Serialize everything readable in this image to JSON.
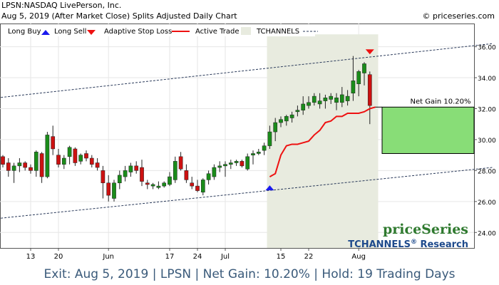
{
  "header": {
    "line1": "LPSN:NASDAQ LivePerson, Inc.",
    "line2": "Aug 5, 2019 (After Market Close)  Splits Adjusted Daily Chart",
    "copyright": "© priceseries.com"
  },
  "legend": {
    "long_buy": "Long Buy",
    "long_sell": "Long Sell",
    "adaptive_stop": "Adaptive Stop Loss",
    "active_trade": "Active Trade",
    "tchannels": "TCHANNELS"
  },
  "net_gain_label": "Net Gain 10.20%",
  "brand": {
    "name": "priceSeries",
    "sub": "TCHANNELS",
    "reg": "®",
    "research": " Research"
  },
  "footer": "Exit: Aug 5, 2019 | LPSN | Net Gain: 10.20% | Hold: 19 Trading Days",
  "colors": {
    "up": "#1a8c1a",
    "down": "#cc1111",
    "stop": "#ee1111",
    "active_trade_bg": "#e8ebdf",
    "gain_box": "#88dd77",
    "channel": "#2a3a5a",
    "footer_text": "#3a5a7a",
    "brand_green": "#2f7a2f",
    "brand_blue": "#1e4a8c"
  },
  "chart_data": {
    "type": "candlestick",
    "ylim": [
      23,
      37.5
    ],
    "y_ticks": [
      24,
      26,
      28,
      30,
      32,
      34,
      36
    ],
    "y_tick_labels": [
      "24.00",
      "26.00",
      "28.00",
      "30.00",
      "32.00",
      "34.00",
      "36.00"
    ],
    "x_tick_labels": [
      {
        "label": "13",
        "i": 5
      },
      {
        "label": "20",
        "i": 10
      },
      {
        "label": "Jun",
        "i": 19
      },
      {
        "label": "17",
        "i": 30
      },
      {
        "label": "24",
        "i": 35
      },
      {
        "label": "Jul",
        "i": 40
      },
      {
        "label": "15",
        "i": 50
      },
      {
        "label": "22",
        "i": 55
      },
      {
        "label": "Aug",
        "i": 64
      }
    ],
    "candles": [
      [
        28.9,
        29.0,
        28.2,
        28.4
      ],
      [
        28.5,
        28.8,
        27.6,
        28.0
      ],
      [
        28.0,
        28.5,
        27.2,
        28.3
      ],
      [
        28.3,
        28.8,
        27.9,
        28.5
      ],
      [
        28.5,
        28.6,
        28.0,
        28.2
      ],
      [
        28.2,
        28.4,
        27.8,
        28.0
      ],
      [
        28.0,
        29.3,
        27.6,
        29.2
      ],
      [
        29.1,
        29.2,
        27.2,
        27.6
      ],
      [
        27.6,
        30.5,
        27.5,
        30.3
      ],
      [
        30.2,
        30.9,
        29.0,
        29.4
      ],
      [
        29.0,
        29.4,
        28.2,
        28.4
      ],
      [
        28.4,
        29.0,
        28.1,
        28.8
      ],
      [
        28.9,
        29.6,
        28.4,
        29.5
      ],
      [
        29.4,
        29.5,
        28.3,
        28.5
      ],
      [
        28.6,
        29.1,
        28.4,
        29.0
      ],
      [
        29.1,
        29.3,
        28.6,
        28.8
      ],
      [
        28.8,
        29.0,
        28.2,
        28.4
      ],
      [
        28.5,
        28.8,
        28.0,
        28.2
      ],
      [
        28.0,
        28.3,
        26.2,
        27.2
      ],
      [
        27.2,
        27.7,
        26.0,
        26.4
      ],
      [
        26.2,
        27.4,
        26.0,
        27.2
      ],
      [
        27.2,
        28.0,
        26.8,
        27.7
      ],
      [
        27.6,
        28.3,
        27.3,
        28.0
      ],
      [
        27.9,
        28.5,
        27.6,
        28.3
      ],
      [
        28.3,
        28.6,
        27.8,
        28.0
      ],
      [
        28.2,
        28.7,
        27.0,
        27.3
      ],
      [
        27.2,
        27.4,
        26.8,
        27.1
      ],
      [
        27.0,
        27.2,
        26.8,
        27.1
      ],
      [
        26.9,
        27.3,
        26.8,
        27.0
      ],
      [
        27.0,
        27.3,
        26.9,
        27.2
      ],
      [
        27.1,
        27.9,
        27.0,
        27.6
      ],
      [
        27.4,
        28.9,
        27.2,
        28.6
      ],
      [
        28.9,
        29.2,
        28.0,
        28.1
      ],
      [
        28.0,
        28.4,
        27.2,
        27.4
      ],
      [
        27.2,
        27.6,
        26.8,
        27.0
      ],
      [
        27.0,
        27.4,
        26.6,
        26.7
      ],
      [
        26.6,
        27.5,
        26.4,
        27.4
      ],
      [
        27.4,
        28.0,
        27.1,
        27.8
      ],
      [
        27.6,
        28.4,
        27.4,
        28.2
      ],
      [
        28.2,
        28.6,
        27.9,
        28.3
      ],
      [
        28.3,
        28.6,
        27.6,
        28.4
      ],
      [
        28.4,
        28.7,
        28.1,
        28.5
      ],
      [
        28.5,
        28.7,
        28.3,
        28.6
      ],
      [
        28.6,
        28.7,
        28.2,
        28.3
      ],
      [
        28.1,
        29.1,
        28.0,
        28.9
      ],
      [
        29.0,
        29.3,
        28.4,
        29.1
      ],
      [
        29.1,
        29.4,
        29.0,
        29.2
      ],
      [
        29.3,
        29.8,
        29.0,
        29.6
      ],
      [
        29.6,
        30.9,
        29.4,
        30.5
      ],
      [
        30.5,
        31.4,
        29.9,
        31.1
      ],
      [
        31.1,
        31.5,
        30.8,
        31.3
      ],
      [
        31.2,
        31.6,
        30.9,
        31.5
      ],
      [
        31.4,
        31.8,
        31.1,
        31.6
      ],
      [
        31.8,
        32.2,
        31.5,
        31.9
      ],
      [
        31.9,
        32.8,
        31.6,
        32.3
      ],
      [
        32.2,
        32.8,
        32.0,
        32.4
      ],
      [
        32.4,
        33.0,
        32.2,
        32.8
      ],
      [
        32.3,
        33.0,
        32.0,
        32.5
      ],
      [
        32.5,
        32.9,
        32.0,
        32.7
      ],
      [
        32.6,
        33.0,
        32.3,
        32.8
      ],
      [
        32.4,
        33.0,
        31.9,
        32.7
      ],
      [
        32.4,
        33.4,
        32.1,
        32.9
      ],
      [
        32.5,
        33.2,
        32.2,
        32.8
      ],
      [
        33.0,
        35.4,
        32.5,
        33.8
      ],
      [
        33.6,
        34.5,
        32.8,
        34.4
      ],
      [
        34.3,
        35.0,
        33.5,
        34.9
      ],
      [
        34.2,
        34.4,
        31.0,
        32.2
      ]
    ],
    "adaptive_stop": [
      {
        "i": 48,
        "v": 27.6
      },
      {
        "i": 49,
        "v": 27.8
      },
      {
        "i": 50,
        "v": 29.0
      },
      {
        "i": 51,
        "v": 29.6
      },
      {
        "i": 52,
        "v": 29.7
      },
      {
        "i": 53,
        "v": 29.7
      },
      {
        "i": 54,
        "v": 29.8
      },
      {
        "i": 55,
        "v": 29.9
      },
      {
        "i": 56,
        "v": 30.3
      },
      {
        "i": 57,
        "v": 30.6
      },
      {
        "i": 58,
        "v": 31.1
      },
      {
        "i": 59,
        "v": 31.2
      },
      {
        "i": 60,
        "v": 31.5
      },
      {
        "i": 61,
        "v": 31.5
      },
      {
        "i": 62,
        "v": 31.7
      },
      {
        "i": 63,
        "v": 31.7
      },
      {
        "i": 64,
        "v": 31.7
      },
      {
        "i": 65,
        "v": 31.8
      },
      {
        "i": 66,
        "v": 32.0
      },
      {
        "i": 67,
        "v": 32.1
      }
    ],
    "channel_upper": {
      "i0": -1,
      "v0": 32.7,
      "i1": 88,
      "v1": 36.2
    },
    "channel_lower": {
      "i0": -1,
      "v0": 24.9,
      "i1": 88,
      "v1": 28.2
    },
    "active_trade_range": [
      47.5,
      67.5
    ],
    "buy_signal": {
      "i": 48,
      "v": 27.0
    },
    "sell_signal": {
      "i": 66,
      "v": 35.6
    },
    "gain_box": {
      "from": 29.1,
      "to": 32.1
    }
  }
}
